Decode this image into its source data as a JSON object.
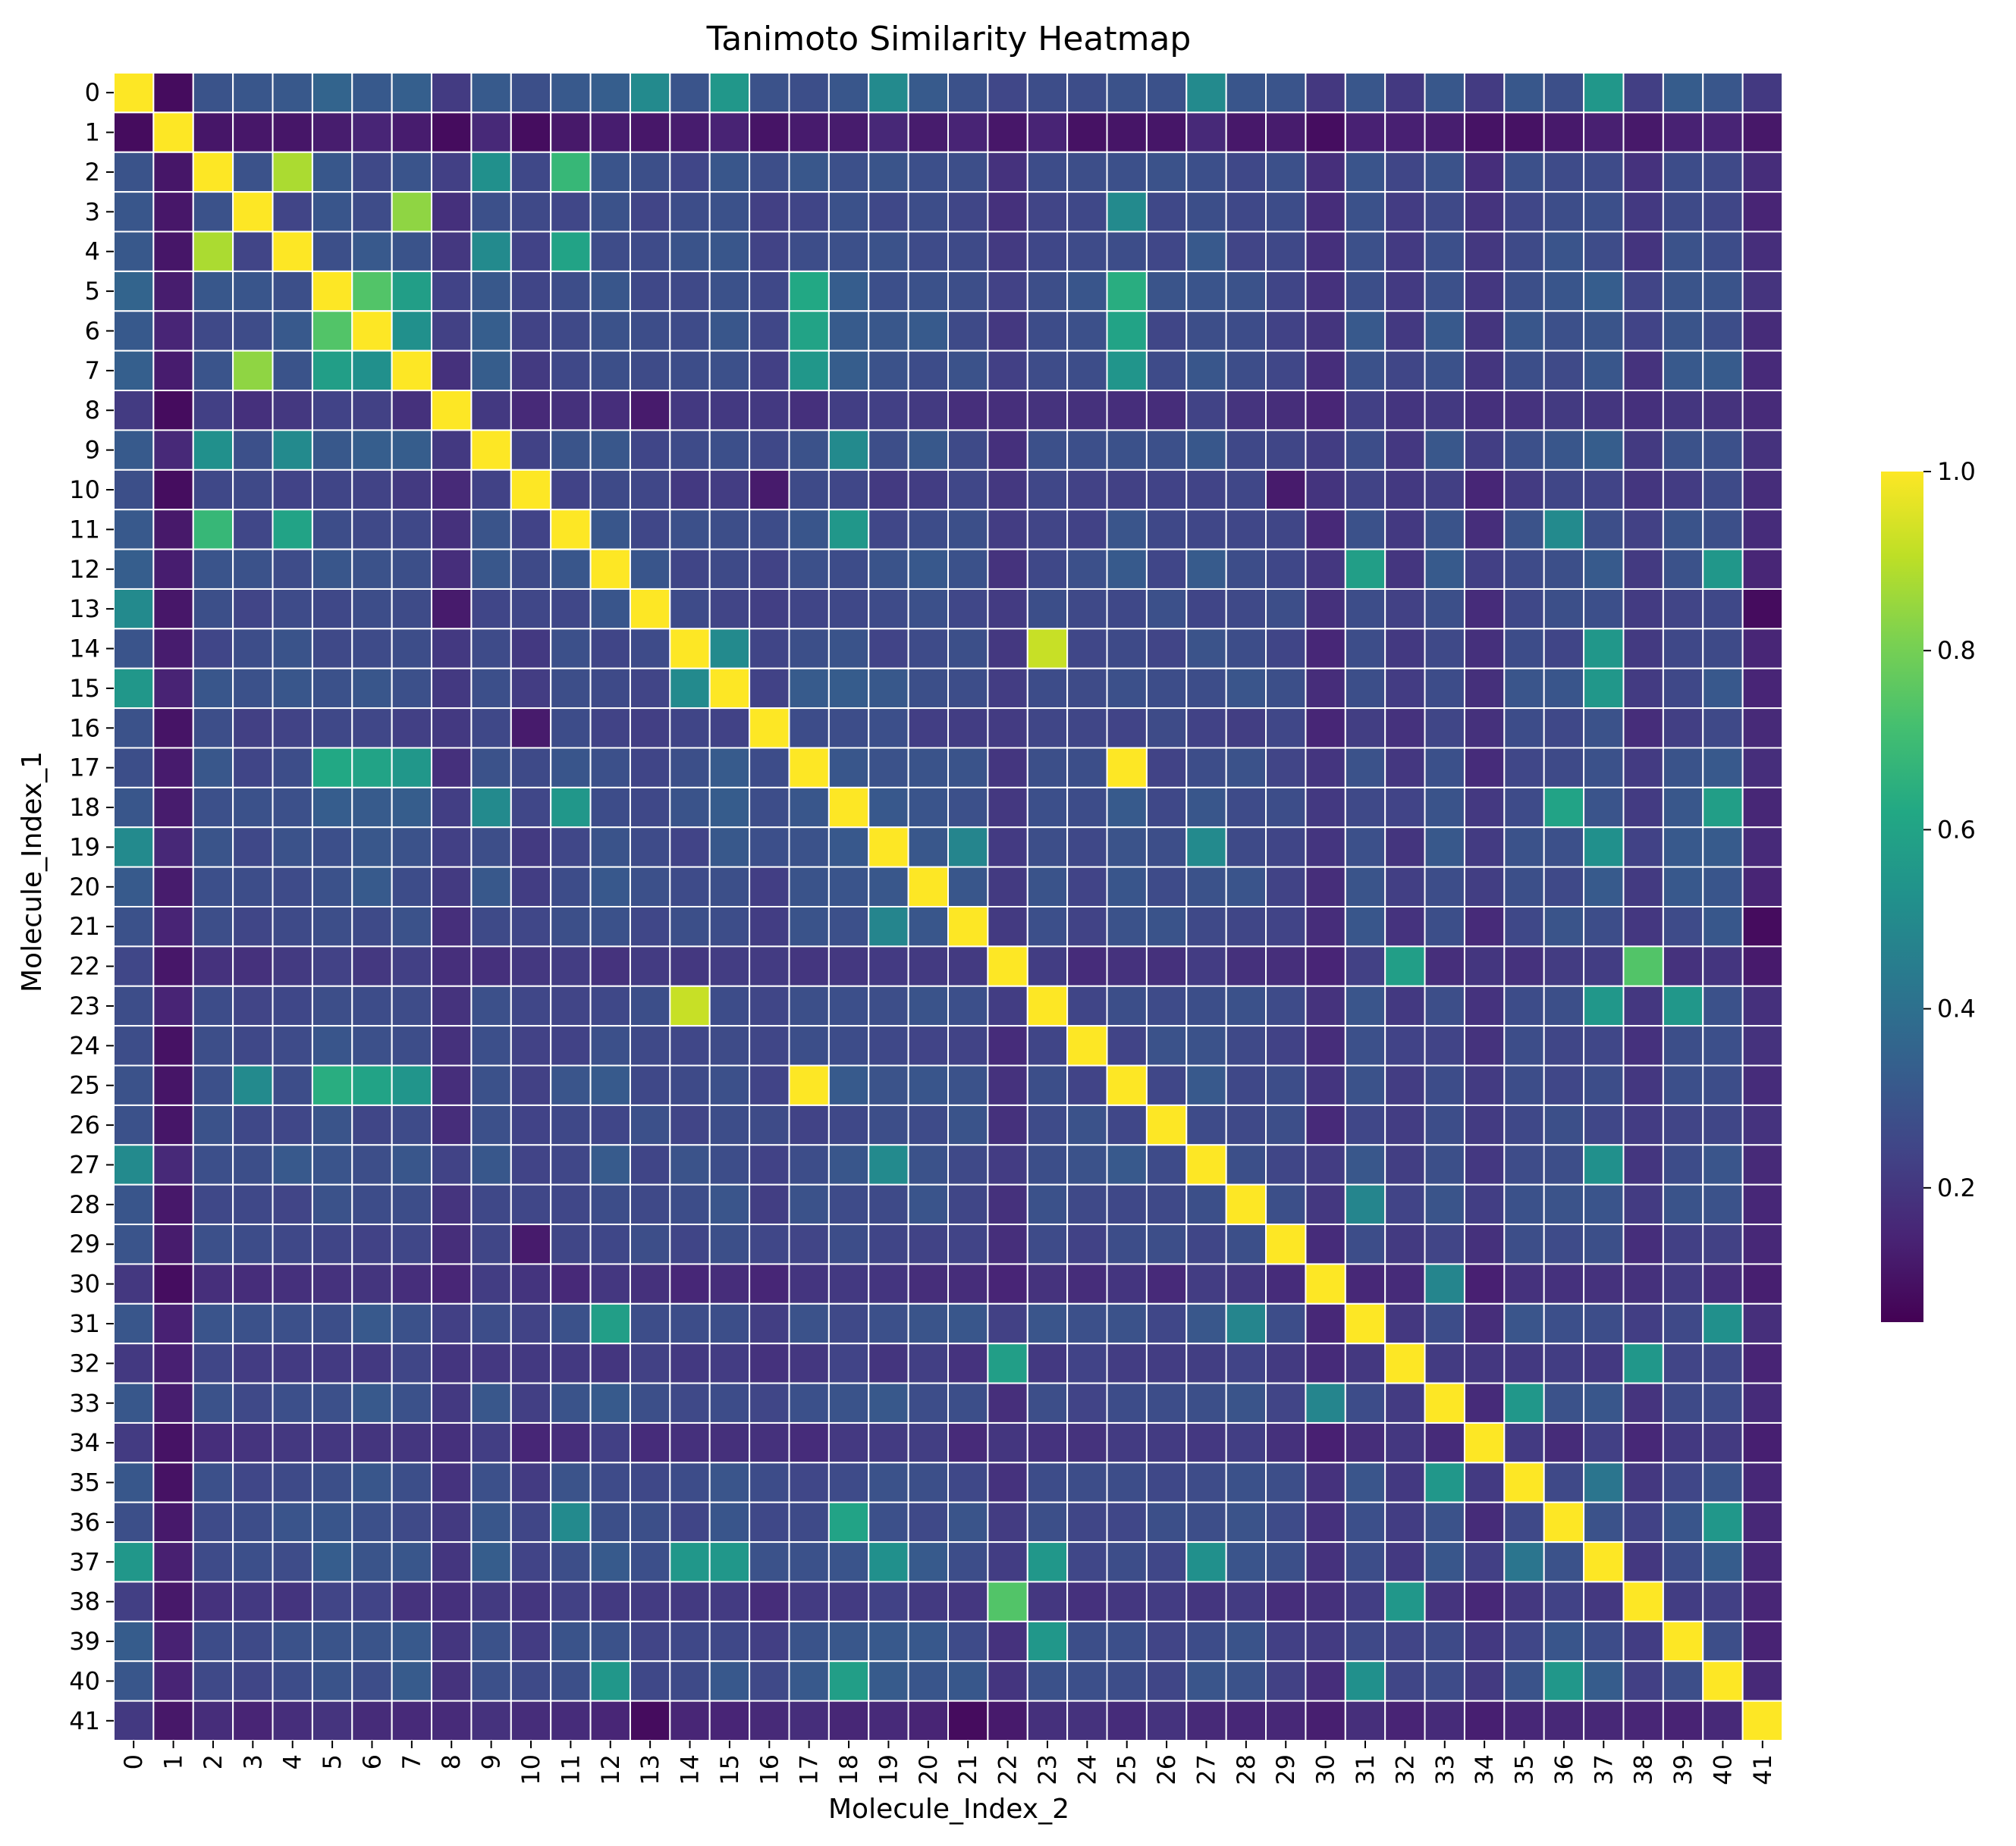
{
  "chart_data": {
    "type": "heatmap",
    "title": "Tanimoto Similarity Heatmap",
    "xlabel": "Molecule_Index_2",
    "ylabel": "Molecule_Index_1",
    "x_categories": [
      "0",
      "1",
      "2",
      "3",
      "4",
      "5",
      "6",
      "7",
      "8",
      "9",
      "10",
      "11",
      "12",
      "13",
      "14",
      "15",
      "16",
      "17",
      "18",
      "19",
      "20",
      "21",
      "22",
      "23",
      "24",
      "25",
      "26",
      "27",
      "28",
      "29",
      "30",
      "31",
      "32",
      "33",
      "34",
      "35",
      "36",
      "37",
      "38",
      "39",
      "40",
      "41"
    ],
    "y_categories": [
      "0",
      "1",
      "2",
      "3",
      "4",
      "5",
      "6",
      "7",
      "8",
      "9",
      "10",
      "11",
      "12",
      "13",
      "14",
      "15",
      "16",
      "17",
      "18",
      "19",
      "20",
      "21",
      "22",
      "23",
      "24",
      "25",
      "26",
      "27",
      "28",
      "29",
      "30",
      "31",
      "32",
      "33",
      "34",
      "35",
      "36",
      "37",
      "38",
      "39",
      "40",
      "41"
    ],
    "colormap": "viridis",
    "value_range": [
      0.05,
      1.0
    ],
    "colorbar_ticks": [
      0.2,
      0.4,
      0.6,
      0.8,
      1.0
    ],
    "colorbar_tick_labels": [
      "0.2",
      "0.4",
      "0.6",
      "0.8",
      "1.0"
    ],
    "grid_line_color": "#ffffff",
    "default_offdiagonal_value": 0.28,
    "row_base_values": [
      0.36,
      0.08,
      0.28,
      0.27,
      0.28,
      0.32,
      0.31,
      0.3,
      0.18,
      0.3,
      0.22,
      0.27,
      0.29,
      0.25,
      0.26,
      0.3,
      0.24,
      0.29,
      0.3,
      0.3,
      0.29,
      0.28,
      0.18,
      0.27,
      0.26,
      0.29,
      0.26,
      0.3,
      0.27,
      0.25,
      0.16,
      0.28,
      0.2,
      0.29,
      0.17,
      0.27,
      0.27,
      0.32,
      0.19,
      0.28,
      0.29,
      0.14
    ],
    "notable_pairs": [
      {
        "i": 0,
        "j": 1,
        "value": 0.08
      },
      {
        "i": 2,
        "j": 4,
        "value": 0.88
      },
      {
        "i": 2,
        "j": 11,
        "value": 0.68
      },
      {
        "i": 2,
        "j": 9,
        "value": 0.52
      },
      {
        "i": 3,
        "j": 7,
        "value": 0.84
      },
      {
        "i": 3,
        "j": 25,
        "value": 0.5
      },
      {
        "i": 4,
        "j": 11,
        "value": 0.6
      },
      {
        "i": 4,
        "j": 9,
        "value": 0.5
      },
      {
        "i": 5,
        "j": 6,
        "value": 0.74
      },
      {
        "i": 5,
        "j": 7,
        "value": 0.58
      },
      {
        "i": 5,
        "j": 17,
        "value": 0.62
      },
      {
        "i": 5,
        "j": 25,
        "value": 0.64
      },
      {
        "i": 6,
        "j": 7,
        "value": 0.52
      },
      {
        "i": 6,
        "j": 17,
        "value": 0.6
      },
      {
        "i": 6,
        "j": 25,
        "value": 0.6
      },
      {
        "i": 7,
        "j": 17,
        "value": 0.55
      },
      {
        "i": 7,
        "j": 25,
        "value": 0.54
      },
      {
        "i": 0,
        "j": 15,
        "value": 0.55
      },
      {
        "i": 0,
        "j": 37,
        "value": 0.55
      },
      {
        "i": 0,
        "j": 13,
        "value": 0.5
      },
      {
        "i": 0,
        "j": 19,
        "value": 0.5
      },
      {
        "i": 0,
        "j": 27,
        "value": 0.5
      },
      {
        "i": 12,
        "j": 31,
        "value": 0.58
      },
      {
        "i": 12,
        "j": 40,
        "value": 0.55
      },
      {
        "i": 14,
        "j": 23,
        "value": 0.92
      },
      {
        "i": 14,
        "j": 37,
        "value": 0.55
      },
      {
        "i": 14,
        "j": 15,
        "value": 0.5
      },
      {
        "i": 15,
        "j": 37,
        "value": 0.55
      },
      {
        "i": 17,
        "j": 25,
        "value": 1.0
      },
      {
        "i": 18,
        "j": 36,
        "value": 0.6
      },
      {
        "i": 18,
        "j": 40,
        "value": 0.58
      },
      {
        "i": 11,
        "j": 18,
        "value": 0.55
      },
      {
        "i": 11,
        "j": 36,
        "value": 0.5
      },
      {
        "i": 22,
        "j": 38,
        "value": 0.74
      },
      {
        "i": 22,
        "j": 32,
        "value": 0.58
      },
      {
        "i": 23,
        "j": 37,
        "value": 0.55
      },
      {
        "i": 23,
        "j": 39,
        "value": 0.55
      },
      {
        "i": 32,
        "j": 38,
        "value": 0.55
      },
      {
        "i": 33,
        "j": 35,
        "value": 0.55
      },
      {
        "i": 33,
        "j": 30,
        "value": 0.48
      },
      {
        "i": 36,
        "j": 40,
        "value": 0.55
      },
      {
        "i": 31,
        "j": 40,
        "value": 0.52
      },
      {
        "i": 28,
        "j": 31,
        "value": 0.48
      },
      {
        "i": 27,
        "j": 37,
        "value": 0.52
      },
      {
        "i": 19,
        "j": 27,
        "value": 0.5
      },
      {
        "i": 19,
        "j": 37,
        "value": 0.52
      },
      {
        "i": 13,
        "j": 12,
        "value": 0.3
      },
      {
        "i": 8,
        "j": 13,
        "value": 0.12
      },
      {
        "i": 13,
        "j": 41,
        "value": 0.08
      },
      {
        "i": 21,
        "j": 41,
        "value": 0.08
      },
      {
        "i": 16,
        "j": 10,
        "value": 0.12
      },
      {
        "i": 29,
        "j": 10,
        "value": 0.12
      },
      {
        "i": 9,
        "j": 18,
        "value": 0.5
      },
      {
        "i": 21,
        "j": 19,
        "value": 0.48
      },
      {
        "i": 35,
        "j": 37,
        "value": 0.42
      }
    ]
  }
}
